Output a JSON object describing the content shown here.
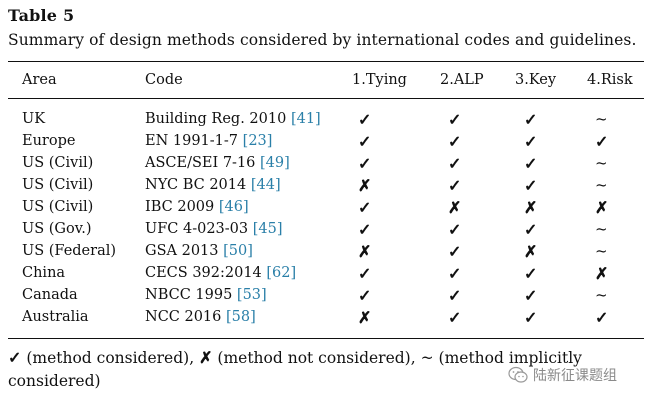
{
  "table_label": "Table 5",
  "caption": "Summary of design methods considered by international codes and guidelines.",
  "columns": {
    "area": "Area",
    "code": "Code",
    "m1": "1.Tying",
    "m2": "2.ALP",
    "m3": "3.Key",
    "m4": "4.Risk"
  },
  "marks": {
    "yes": "✓",
    "no": "✗",
    "implicit": "~"
  },
  "rows": [
    {
      "area": "UK",
      "code": "Building Reg. 2010",
      "ref": "[41]",
      "m1": "yes",
      "m2": "yes",
      "m3": "yes",
      "m4": "implicit"
    },
    {
      "area": "Europe",
      "code": "EN 1991-1-7",
      "ref": "[23]",
      "m1": "yes",
      "m2": "yes",
      "m3": "yes",
      "m4": "yes"
    },
    {
      "area": "US (Civil)",
      "code": "ASCE/SEI 7-16",
      "ref": "[49]",
      "m1": "yes",
      "m2": "yes",
      "m3": "yes",
      "m4": "implicit"
    },
    {
      "area": "US (Civil)",
      "code": "NYC BC 2014",
      "ref": "[44]",
      "m1": "no",
      "m2": "yes",
      "m3": "yes",
      "m4": "implicit"
    },
    {
      "area": "US (Civil)",
      "code": "IBC 2009",
      "ref": "[46]",
      "m1": "yes",
      "m2": "no",
      "m3": "no",
      "m4": "no"
    },
    {
      "area": "US (Gov.)",
      "code": "UFC 4-023-03",
      "ref": "[45]",
      "m1": "yes",
      "m2": "yes",
      "m3": "yes",
      "m4": "implicit"
    },
    {
      "area": "US (Federal)",
      "code": "GSA 2013",
      "ref": "[50]",
      "m1": "no",
      "m2": "yes",
      "m3": "no",
      "m4": "implicit"
    },
    {
      "area": "China",
      "code": "CECS 392:2014",
      "ref": "[62]",
      "m1": "yes",
      "m2": "yes",
      "m3": "yes",
      "m4": "no"
    },
    {
      "area": "Canada",
      "code": "NBCC 1995",
      "ref": "[53]",
      "m1": "yes",
      "m2": "yes",
      "m3": "yes",
      "m4": "implicit"
    },
    {
      "area": "Australia",
      "code": "NCC 2016",
      "ref": "[58]",
      "m1": "no",
      "m2": "yes",
      "m3": "yes",
      "m4": "yes"
    }
  ],
  "footnote": {
    "yes_text": " (method considered), ",
    "no_text": " (method not considered), ",
    "implicit_text": " (method implicitly considered)"
  },
  "watermark": {
    "text": "陆新征课题组"
  },
  "colors": {
    "ref": "#2a7fa8",
    "text": "#111111",
    "watermark": "#8a8a8a"
  }
}
